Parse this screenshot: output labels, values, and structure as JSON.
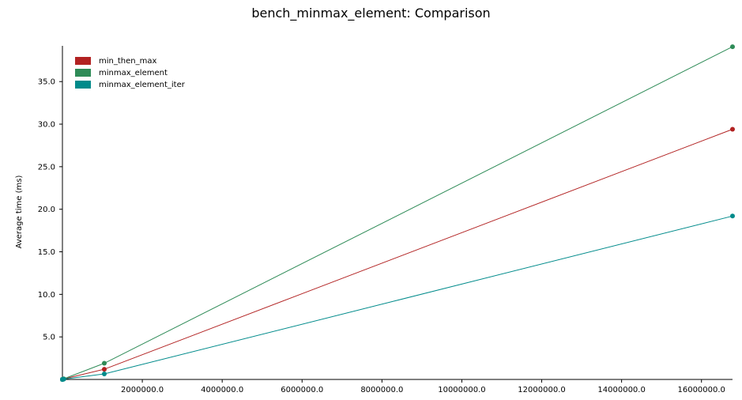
{
  "chart_data": {
    "type": "line",
    "title": "bench_minmax_element: Comparison",
    "xlabel": "",
    "ylabel": "Average time (ms)",
    "xlim": [
      0,
      16777216
    ],
    "ylim": [
      0,
      39.2
    ],
    "x_ticks": [
      2000000,
      4000000,
      6000000,
      8000000,
      10000000,
      12000000,
      14000000,
      16000000
    ],
    "x_tick_labels": [
      "2000000.0",
      "4000000.0",
      "6000000.0",
      "8000000.0",
      "10000000.0",
      "12000000.0",
      "14000000.0",
      "16000000.0"
    ],
    "y_ticks": [
      5,
      10,
      15,
      20,
      25,
      30,
      35
    ],
    "y_tick_labels": [
      "5.0",
      "10.0",
      "15.0",
      "20.0",
      "25.0",
      "30.0",
      "35.0"
    ],
    "grid": false,
    "legend_position": "top-left",
    "x": [
      1,
      8,
      64,
      512,
      4096,
      32768,
      1048576,
      16777216
    ],
    "series": [
      {
        "name": "min_then_max",
        "color": "#b22222",
        "values": [
          0.0,
          0.0,
          0.0,
          0.0,
          0.01,
          0.06,
          1.2,
          29.4
        ]
      },
      {
        "name": "minmax_element",
        "color": "#2e8b57",
        "values": [
          0.0,
          0.0,
          0.0,
          0.0,
          0.01,
          0.07,
          1.9,
          39.1
        ]
      },
      {
        "name": "minmax_element_iter",
        "color": "#008b8b",
        "values": [
          0.0,
          0.0,
          0.0,
          0.0,
          0.01,
          0.04,
          0.65,
          19.2
        ]
      }
    ]
  }
}
